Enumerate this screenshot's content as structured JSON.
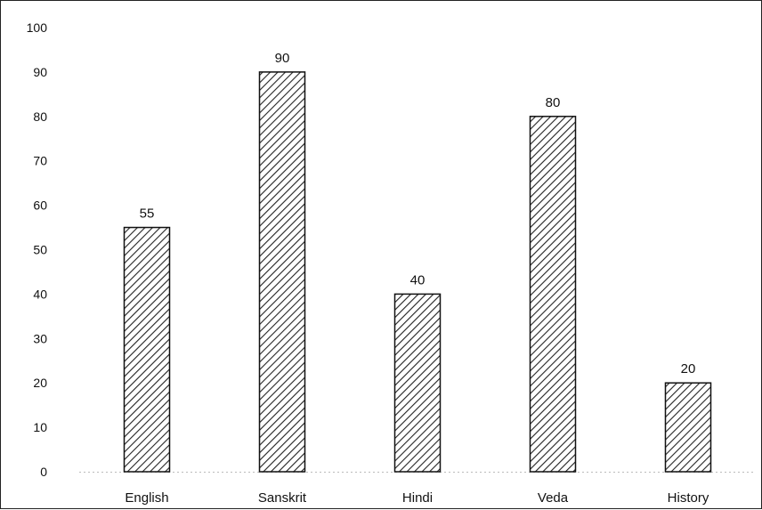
{
  "chart_data": {
    "type": "bar",
    "categories": [
      "English",
      "Sanskrit",
      "Hindi",
      "Veda",
      "History"
    ],
    "values": [
      55,
      90,
      40,
      80,
      20
    ],
    "data_labels": [
      "55",
      "90",
      "40",
      "80",
      "20"
    ],
    "title": "",
    "xlabel": "",
    "ylabel": "",
    "ylim": [
      0,
      100
    ],
    "yticks": [
      0,
      10,
      20,
      30,
      40,
      50,
      60,
      70,
      80,
      90,
      100
    ],
    "grid": false,
    "legend": "none",
    "bar_fill": "hatched",
    "colors": {
      "bar_stroke": "#111111",
      "hatch": "#222222",
      "background": "#ffffff"
    }
  }
}
